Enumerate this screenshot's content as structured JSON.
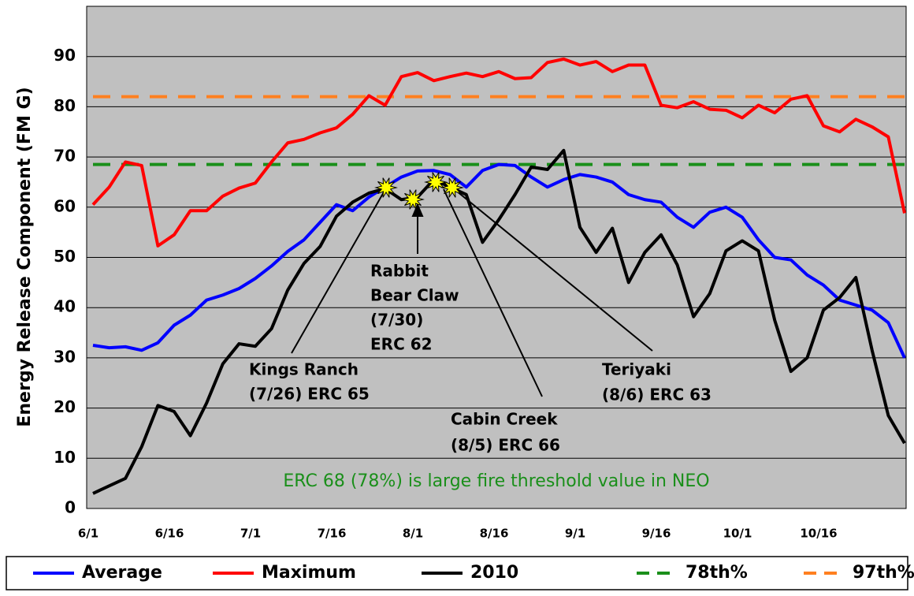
{
  "chart_data": {
    "type": "line",
    "ylabel": "Energy Release Component (FM G)",
    "categories": [
      "6/1",
      null,
      null,
      null,
      null,
      "6/16",
      null,
      null,
      null,
      null,
      "7/1",
      null,
      null,
      null,
      null,
      "7/16",
      null,
      null,
      null,
      null,
      "8/1",
      null,
      null,
      null,
      null,
      "8/16",
      null,
      null,
      null,
      null,
      "9/1",
      null,
      null,
      null,
      null,
      "9/16",
      null,
      null,
      null,
      null,
      "10/1",
      null,
      null,
      null,
      null,
      "10/16",
      null,
      null,
      null,
      null,
      null
    ],
    "series": [
      {
        "name": "Average",
        "color": "#0000ff",
        "values": [
          32.5,
          32,
          32.2,
          31.5,
          33,
          36.5,
          38.5,
          41.5,
          42.5,
          43.8,
          45.8,
          48.3,
          51.2,
          53.5,
          57,
          60.5,
          59.3,
          62,
          64,
          66,
          67.2,
          67.3,
          66.5,
          64,
          67.3,
          68.5,
          68.3,
          66,
          64,
          65.5,
          66.5,
          66,
          65,
          62.5,
          61.5,
          61,
          58,
          56,
          59,
          60,
          58,
          53.5,
          50,
          49.5,
          46.5,
          44.5,
          41.5,
          40.5,
          39.5,
          37,
          30
        ]
      },
      {
        "name": "Maximum",
        "color": "#ff0000",
        "values": [
          60.5,
          64,
          69,
          68.3,
          52.3,
          54.5,
          59.3,
          59.3,
          62.2,
          63.8,
          64.8,
          69,
          72.8,
          73.5,
          74.8,
          75.8,
          78.5,
          82.2,
          80.3,
          86,
          86.8,
          85.2,
          86,
          86.7,
          86,
          87,
          85.6,
          85.8,
          88.8,
          89.5,
          88.3,
          89,
          87,
          88.3,
          88.3,
          80.3,
          79.8,
          81,
          79.5,
          79.3,
          77.8,
          80.3,
          78.8,
          81.5,
          82.2,
          76.2,
          75,
          77.5,
          76,
          74,
          58.8
        ]
      },
      {
        "name": "2010",
        "color": "#000000",
        "values": [
          3,
          4.5,
          6,
          12.3,
          20.5,
          19.3,
          14.5,
          21,
          28.8,
          32.8,
          32.3,
          35.8,
          43.5,
          48.8,
          52.2,
          58.2,
          61,
          62.8,
          63.7,
          61.5,
          62,
          65.5,
          64,
          62.5,
          53,
          57.5,
          62.5,
          68,
          67.5,
          71.3,
          56,
          51,
          55.8,
          45,
          51,
          54.5,
          48.5,
          38.2,
          42.8,
          51.3,
          53.3,
          51.3,
          37.5,
          27.3,
          30,
          39.5,
          42,
          46,
          31.5,
          18.5,
          13
        ]
      }
    ],
    "reference_lines": [
      {
        "name": "78th%",
        "value": 68.5,
        "color": "#1a8f1a"
      },
      {
        "name": "97th%",
        "value": 82,
        "color": "#ff8020"
      }
    ],
    "ylim": [
      0,
      100
    ],
    "yticks": [
      0,
      10,
      20,
      30,
      40,
      50,
      60,
      70,
      80,
      90
    ],
    "grid": true,
    "legend": "bottom",
    "annotations": [
      {
        "lines": [
          "Rabbit",
          "Bear Claw",
          "(7/30)",
          "ERC 62"
        ]
      },
      {
        "lines": [
          "Kings Ranch",
          "(7/26) ERC 65"
        ]
      },
      {
        "lines": [
          "Cabin Creek",
          "(8/5) ERC 66"
        ]
      },
      {
        "lines": [
          "Teriyaki",
          "(8/6) ERC 63"
        ]
      }
    ],
    "note": "ERC 68 (78%) is large fire threshold value in NEO"
  }
}
